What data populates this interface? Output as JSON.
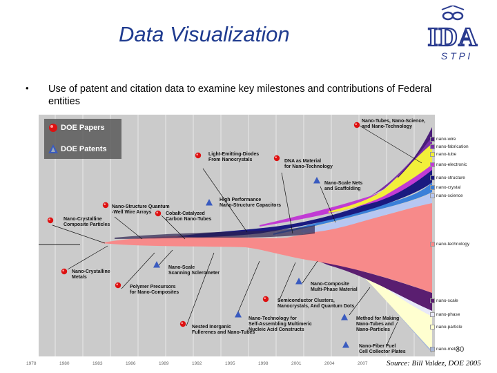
{
  "title": "Data Visualization",
  "logo": {
    "letters": "IDA",
    "sub": "S T P I"
  },
  "bullet": "Use of patent and citation data to examine key milestones and contributions of Federal entities",
  "legend": {
    "papers": "DOE Papers",
    "patents": "DOE Patents"
  },
  "annotations": [
    {
      "id": "a1",
      "lines": [
        "Nano-Tubes, Nano-Science,",
        "and Nano-Technology"
      ],
      "marker": "paper"
    },
    {
      "id": "a2",
      "lines": [
        "Light-Emitting-Diodes",
        "From Nanocrystals"
      ],
      "marker": "paper"
    },
    {
      "id": "a3",
      "lines": [
        "DNA as Material",
        "for Nano-Technology"
      ],
      "marker": "paper"
    },
    {
      "id": "a4",
      "lines": [
        "Nano-Scale Nets",
        "and Scaffolding"
      ],
      "marker": "patent"
    },
    {
      "id": "a5",
      "lines": [
        "High Performance",
        "Nano-Structure Capacitors"
      ],
      "marker": "patent"
    },
    {
      "id": "a6",
      "lines": [
        "Nano-Structure Quantum",
        "-Well Wire Arrays"
      ],
      "marker": "paper"
    },
    {
      "id": "a7",
      "lines": [
        "Cobalt-Catalyzed",
        "Carbon Nano-Tubes"
      ],
      "marker": "paper"
    },
    {
      "id": "a8",
      "lines": [
        "Nano-Crystalline",
        "Composite Particles"
      ],
      "marker": "paper"
    },
    {
      "id": "a9",
      "lines": [
        "Nano-Crystalline",
        "Metals"
      ],
      "marker": "paper"
    },
    {
      "id": "a10",
      "lines": [
        "Nano-Scale",
        "Scanning Sclerometer"
      ],
      "marker": "patent"
    },
    {
      "id": "a11",
      "lines": [
        "Polymer Precursors",
        "for Nano-Composites"
      ],
      "marker": "paper"
    },
    {
      "id": "a12",
      "lines": [
        "Nano-Composite",
        "Multi-Phase Material"
      ],
      "marker": "patent"
    },
    {
      "id": "a13",
      "lines": [
        "Semiconductor Clusters,",
        "Nanocrystals, And Quantum Dots"
      ],
      "marker": "paper"
    },
    {
      "id": "a14",
      "lines": [
        "Nano-Technology for",
        "Self-Assembling Multimeric",
        "Nucleic Acid Constructs"
      ],
      "marker": "patent"
    },
    {
      "id": "a15",
      "lines": [
        "Nested Inorganic",
        "Fullerenes and Nano-Tubes"
      ],
      "marker": "paper"
    },
    {
      "id": "a16",
      "lines": [
        "Method for Making",
        "Nano-Tubes and",
        "Nano-Particles"
      ],
      "marker": "patent"
    },
    {
      "id": "a17",
      "lines": [
        "Nano-Fiber Fuel",
        "Cell Collector Plates"
      ],
      "marker": "patent"
    }
  ],
  "categories": [
    {
      "label": "nano-wire",
      "color": "#4a1c7a"
    },
    {
      "label": "nano-fabrication",
      "color": "#7b2fa8"
    },
    {
      "label": "nano-tube",
      "color": "#f2ef3a"
    },
    {
      "label": "nano-electronic",
      "color": "#c13bd4"
    },
    {
      "label": "nano-structure",
      "color": "#1a1a80"
    },
    {
      "label": "nano-crystal",
      "color": "#3a7fd9"
    },
    {
      "label": "nano-science",
      "color": "#b7c7f2"
    },
    {
      "label": "nano-technology",
      "color": "#f78a8a"
    },
    {
      "label": "nano-scale",
      "color": "#5a1e70"
    },
    {
      "label": "nano-phase",
      "color": "#e8e8f8"
    },
    {
      "label": "nano-particle",
      "color": "#ffffd0"
    },
    {
      "label": "nano-meter",
      "color": "#a9b8d8"
    }
  ],
  "years": [
    "1978",
    "1980",
    "1983",
    "1986",
    "1989",
    "1992",
    "1995",
    "1998",
    "2001",
    "2004",
    "2007"
  ],
  "page_number": "30",
  "source": "Source: Bill Valdez, DOE 2005"
}
